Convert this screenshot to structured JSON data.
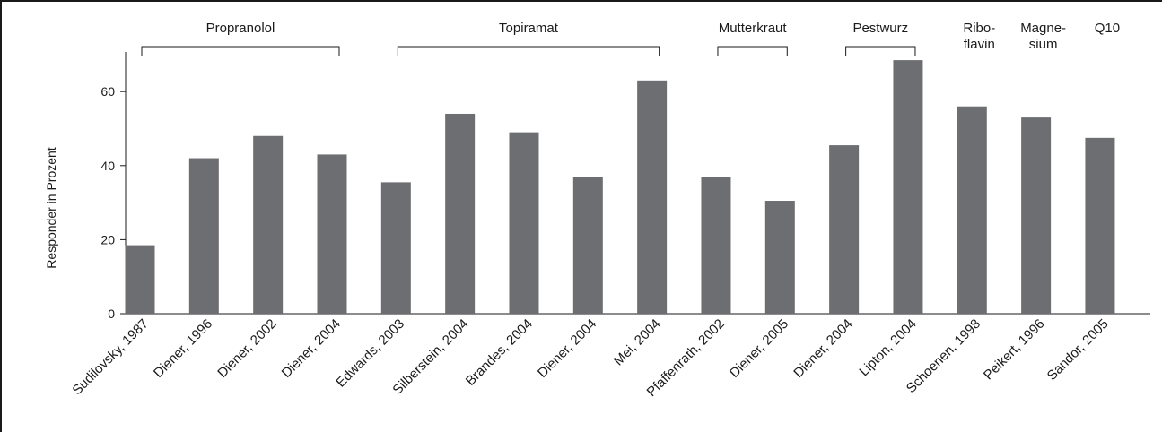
{
  "chart_data": {
    "type": "bar",
    "title": "",
    "xlabel": "",
    "ylabel": "Responder in Prozent",
    "ylim": [
      0,
      72
    ],
    "yticks": [
      0,
      20,
      40,
      60
    ],
    "grid": false,
    "bar_color": "#6d6e71",
    "categories": [
      "Sudilovsky, 1987",
      "Diener, 1996",
      "Diener, 2002",
      "Diener, 2004",
      "Edwards, 2003",
      "Silberstein, 2004",
      "Brandes, 2004",
      "Diener, 2004",
      "Mei, 2004",
      "Pfaffenrath, 2002",
      "Diener, 2005",
      "Diener, 2004",
      "Lipton, 2004",
      "Schoenen, 1998",
      "Peikert, 1996",
      "Sandor, 2005"
    ],
    "values": [
      18.5,
      42,
      48,
      43,
      35.5,
      54,
      49,
      37,
      63,
      37,
      30.5,
      45.5,
      68.5,
      56,
      53,
      47.5
    ],
    "groups": [
      {
        "label": "Propranolol",
        "start": 0,
        "end": 3,
        "bracket": true
      },
      {
        "label": "Topiramat",
        "start": 4,
        "end": 8,
        "bracket": true
      },
      {
        "label": "Mutterkraut",
        "start": 9,
        "end": 10,
        "bracket": true
      },
      {
        "label": "Pestwurz",
        "start": 11,
        "end": 12,
        "bracket": true
      },
      {
        "label": "Ribo-\nflavin",
        "start": 13,
        "end": 13,
        "bracket": false
      },
      {
        "label": "Magne-\nsium",
        "start": 14,
        "end": 14,
        "bracket": false
      },
      {
        "label": "Q10",
        "start": 15,
        "end": 15,
        "bracket": false
      }
    ]
  }
}
